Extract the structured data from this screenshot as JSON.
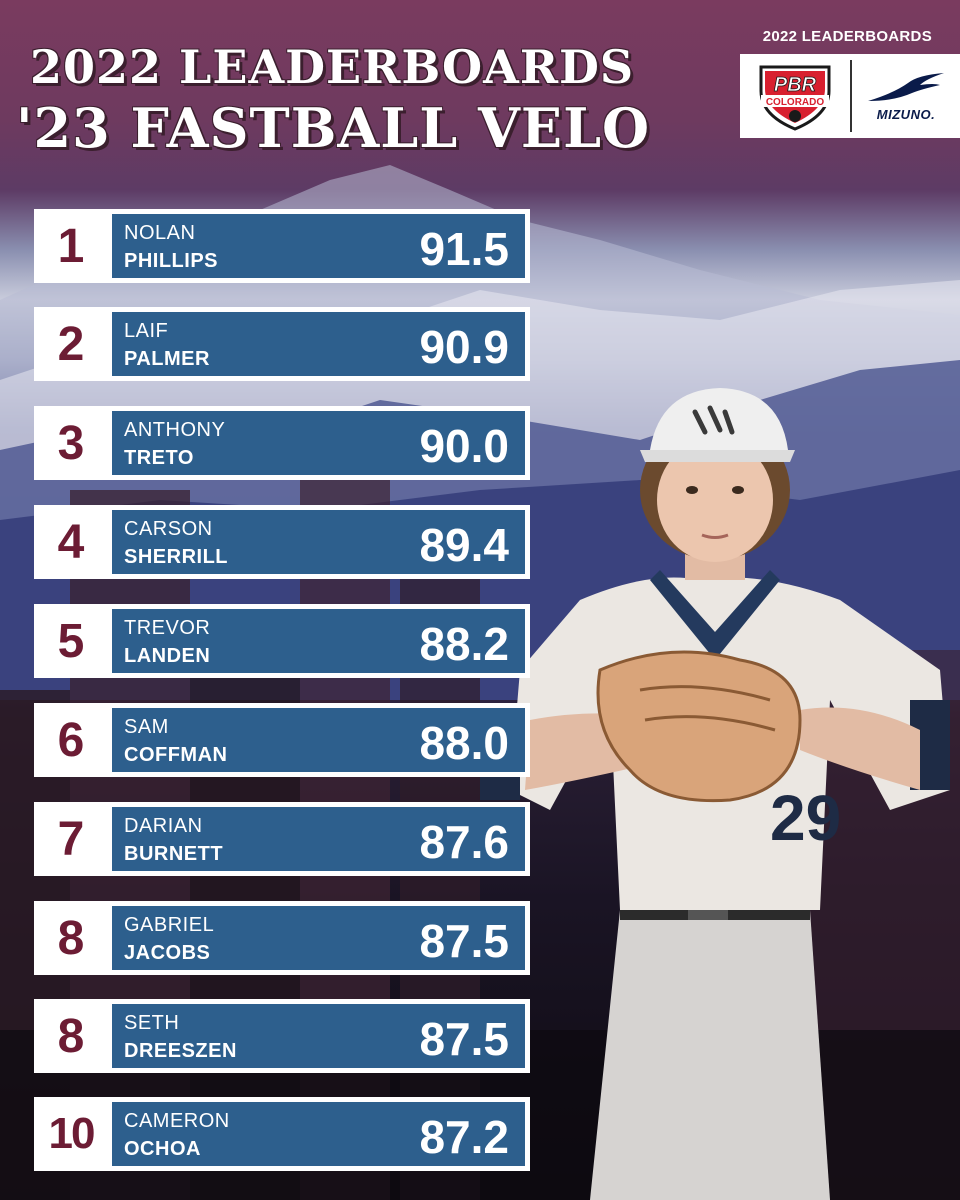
{
  "header": {
    "title_line1": "2022 LEADERBOARDS",
    "title_line2": "'23 FASTBALL VELO",
    "brand_caption": "2022 LEADERBOARDS",
    "logo_pbr_text": "PBR",
    "logo_colorado_text": "COLORADO",
    "logo_mizuno_text": "MIZUNO."
  },
  "leaderboard": [
    {
      "rank": "1",
      "first": "NOLAN",
      "last": "PHILLIPS",
      "velo": "91.5"
    },
    {
      "rank": "2",
      "first": "LAIF",
      "last": "PALMER",
      "velo": "90.9"
    },
    {
      "rank": "3",
      "first": "ANTHONY",
      "last": "TRETO",
      "velo": "90.0"
    },
    {
      "rank": "4",
      "first": "CARSON",
      "last": "SHERRILL",
      "velo": "89.4"
    },
    {
      "rank": "5",
      "first": "TREVOR",
      "last": "LANDEN",
      "velo": "88.2"
    },
    {
      "rank": "6",
      "first": "SAM",
      "last": "COFFMAN",
      "velo": "88.0"
    },
    {
      "rank": "7",
      "first": "DARIAN",
      "last": "BURNETT",
      "velo": "87.6"
    },
    {
      "rank": "8",
      "first": "GABRIEL",
      "last": "JACOBS",
      "velo": "87.5"
    },
    {
      "rank": "8",
      "first": "SETH",
      "last": "DREESZEN",
      "velo": "87.5"
    },
    {
      "rank": "10",
      "first": "CAMERON",
      "last": "OCHOA",
      "velo": "87.2"
    }
  ],
  "player": {
    "jersey_number": "29"
  },
  "colors": {
    "rank_text": "#6c1c34",
    "bar": "#2d5f8d",
    "header_bg": "#7a3b5f"
  }
}
